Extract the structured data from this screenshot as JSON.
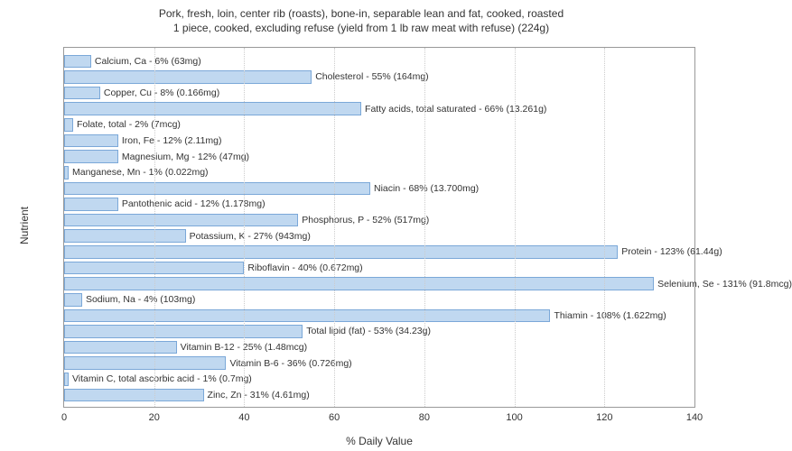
{
  "chart": {
    "type": "bar-horizontal",
    "title_line1": "Pork, fresh, loin, center rib (roasts), bone-in, separable lean and fat, cooked, roasted",
    "title_line2": "1 piece, cooked, excluding refuse (yield from 1 lb raw meat with refuse) (224g)",
    "xlabel": "% Daily Value",
    "ylabel": "Nutrient",
    "xlim_min": 0,
    "xlim_max": 140,
    "xtick_step": 20,
    "xticks": [
      0,
      20,
      40,
      60,
      80,
      100,
      120,
      140
    ],
    "bar_color": "#c0d8f0",
    "bar_border_color": "#7ba8d8",
    "background_color": "#ffffff",
    "grid_color": "#cccccc",
    "title_fontsize": 12,
    "label_fontsize": 12,
    "tick_fontsize": 11,
    "barlabel_fontsize": 10.5,
    "nutrients": [
      {
        "label": "Calcium, Ca - 6% (63mg)",
        "value": 6
      },
      {
        "label": "Cholesterol - 55% (164mg)",
        "value": 55
      },
      {
        "label": "Copper, Cu - 8% (0.166mg)",
        "value": 8
      },
      {
        "label": "Fatty acids, total saturated - 66% (13.261g)",
        "value": 66
      },
      {
        "label": "Folate, total - 2% (7mcg)",
        "value": 2
      },
      {
        "label": "Iron, Fe - 12% (2.11mg)",
        "value": 12
      },
      {
        "label": "Magnesium, Mg - 12% (47mg)",
        "value": 12
      },
      {
        "label": "Manganese, Mn - 1% (0.022mg)",
        "value": 1
      },
      {
        "label": "Niacin - 68% (13.700mg)",
        "value": 68
      },
      {
        "label": "Pantothenic acid - 12% (1.178mg)",
        "value": 12
      },
      {
        "label": "Phosphorus, P - 52% (517mg)",
        "value": 52
      },
      {
        "label": "Potassium, K - 27% (943mg)",
        "value": 27
      },
      {
        "label": "Protein - 123% (61.44g)",
        "value": 123
      },
      {
        "label": "Riboflavin - 40% (0.672mg)",
        "value": 40
      },
      {
        "label": "Selenium, Se - 131% (91.8mcg)",
        "value": 131
      },
      {
        "label": "Sodium, Na - 4% (103mg)",
        "value": 4
      },
      {
        "label": "Thiamin - 108% (1.622mg)",
        "value": 108
      },
      {
        "label": "Total lipid (fat) - 53% (34.23g)",
        "value": 53
      },
      {
        "label": "Vitamin B-12 - 25% (1.48mcg)",
        "value": 25
      },
      {
        "label": "Vitamin B-6 - 36% (0.726mg)",
        "value": 36
      },
      {
        "label": "Vitamin C, total ascorbic acid - 1% (0.7mg)",
        "value": 1
      },
      {
        "label": "Zinc, Zn - 31% (4.61mg)",
        "value": 31
      }
    ]
  }
}
